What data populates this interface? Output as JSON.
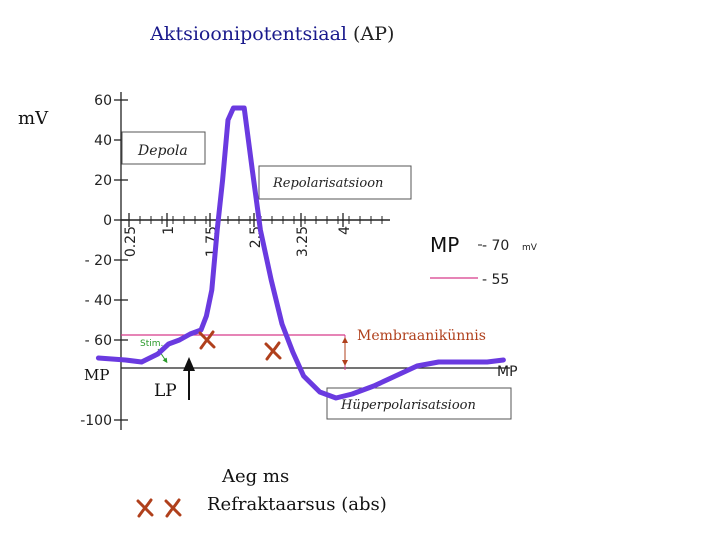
{
  "chart_data": {
    "type": "line",
    "title_part1": "Aktsioonipotentsiaal",
    "title_part2": " (AP)",
    "y_unit": "mV",
    "ylim": [
      -100,
      60
    ],
    "y_ticks": [
      {
        "value": 60,
        "label": "60"
      },
      {
        "value": 40,
        "label": "40"
      },
      {
        "value": 20,
        "label": "20"
      },
      {
        "value": 0,
        "label": "0"
      },
      {
        "value": -20,
        "label": "- 20"
      },
      {
        "value": -40,
        "label": "- 40"
      },
      {
        "value": -60,
        "label": "- 60"
      },
      {
        "value": -100,
        "label": "-100"
      }
    ],
    "x_ticks": [
      "0.25",
      "1",
      "1.75",
      "2.5",
      "3.25",
      "4"
    ],
    "x_label": "Aeg ms",
    "series": [
      {
        "points": [
          [
            -0.4,
            -69
          ],
          [
            0.1,
            -70
          ],
          [
            0.4,
            -71
          ],
          [
            0.7,
            -67
          ],
          [
            0.9,
            -62
          ],
          [
            1.1,
            -60
          ],
          [
            1.3,
            -57
          ],
          [
            1.5,
            -55
          ],
          [
            1.6,
            -48
          ],
          [
            1.7,
            -35
          ],
          [
            1.8,
            -5
          ],
          [
            1.9,
            20
          ],
          [
            2.0,
            50
          ],
          [
            2.1,
            56
          ],
          [
            2.3,
            56
          ],
          [
            2.45,
            25
          ],
          [
            2.6,
            -5
          ],
          [
            2.8,
            -30
          ],
          [
            3.0,
            -52
          ],
          [
            3.2,
            -66
          ],
          [
            3.4,
            -78
          ],
          [
            3.7,
            -86
          ],
          [
            4.0,
            -89
          ],
          [
            4.3,
            -87
          ],
          [
            4.7,
            -83
          ],
          [
            5.1,
            -78
          ],
          [
            5.5,
            -73
          ],
          [
            5.9,
            -71
          ],
          [
            6.4,
            -71
          ],
          [
            6.8,
            -71
          ],
          [
            7.1,
            -70
          ]
        ]
      }
    ],
    "reference_lines": [
      {
        "name": "MP",
        "value": -70,
        "label_value": "- 70",
        "unit": "mV",
        "color": "#222222"
      },
      {
        "name": "",
        "value": -55,
        "label_value": "- 55",
        "color": "#d63b8a"
      }
    ],
    "annotations": {
      "depola": "Depola",
      "repolarisatsioon": "Repolarisatsioon",
      "hyperpolarisatsioon": "Hüperpolarisatsioon",
      "membraanikynnis": "Membraanikünnis",
      "stim": "Stim.",
      "mp_left": "MP",
      "mp_right": "MP",
      "lp": "LP",
      "mp_legend": "MP"
    },
    "markers": [
      {
        "value": -60,
        "at": 1.55
      },
      {
        "value": -66,
        "at": 3.25
      }
    ],
    "colors": {
      "line": "#6a3ae0",
      "threshold": "#d63b8a",
      "marker": "#b0401c",
      "title": "#1a1a8c"
    }
  },
  "legend": {
    "refractory_label": "Refraktaarsus (abs)"
  }
}
